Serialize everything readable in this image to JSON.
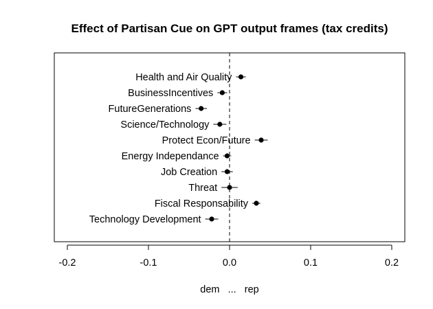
{
  "chart_data": {
    "type": "scatter",
    "title": "Effect of Partisan Cue on GPT output frames (tax credits)",
    "xlabel": "dem   ...   rep",
    "ylabel": "",
    "xlim": [
      -0.2,
      0.2
    ],
    "xticks": [
      -0.2,
      -0.1,
      0.0,
      0.1,
      0.2
    ],
    "xtick_labels": [
      "-0.2",
      "-0.1",
      "0.0",
      "0.1",
      "0.2"
    ],
    "reference_line": {
      "x": 0,
      "style": "dashed"
    },
    "grid": false,
    "legend": "none",
    "points": [
      {
        "label": "Health and Air Quality",
        "x": 0.014,
        "lo": 0.008,
        "hi": 0.02
      },
      {
        "label": "BusinessIncentives",
        "x": -0.009,
        "lo": -0.015,
        "hi": -0.003
      },
      {
        "label": "FutureGenerations",
        "x": -0.035,
        "lo": -0.042,
        "hi": -0.028
      },
      {
        "label": "Science/Technology",
        "x": -0.012,
        "lo": -0.02,
        "hi": -0.004
      },
      {
        "label": "Protect Econ/Future",
        "x": 0.039,
        "lo": 0.031,
        "hi": 0.047
      },
      {
        "label": "Energy Independance",
        "x": -0.003,
        "lo": -0.008,
        "hi": 0.002
      },
      {
        "label": "Job Creation",
        "x": -0.003,
        "lo": -0.01,
        "hi": 0.004
      },
      {
        "label": "Threat",
        "x": 0.0,
        "lo": -0.01,
        "hi": 0.01
      },
      {
        "label": "Fiscal Responsability",
        "x": 0.033,
        "lo": 0.028,
        "hi": 0.038
      },
      {
        "label": "Technology Development",
        "x": -0.022,
        "lo": -0.03,
        "hi": -0.014
      }
    ]
  }
}
